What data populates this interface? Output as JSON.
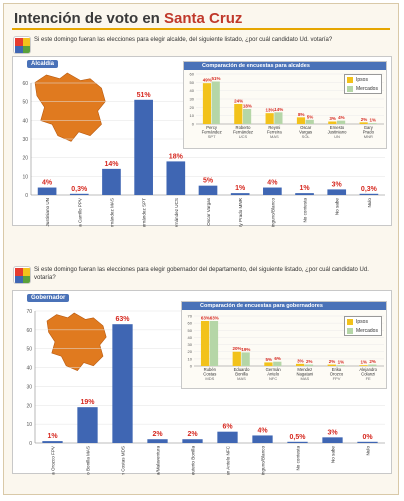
{
  "header": {
    "title_prefix": "Intención de voto en",
    "title_highlight": "Santa Cruz"
  },
  "colors": {
    "bar_blue": "#3f66b3",
    "map_orange": "#e07a1f",
    "pct_red": "#d6281f",
    "ipsos": "#f2c21b",
    "mercados": "#b5d6a7",
    "accent": "#e6a600",
    "section_blue": "#4a72b8"
  },
  "q1": {
    "question": "Si este domingo fueran las elecciones para elegir alcalde, del siguiente listado, ¿por cuál candidato Ud. votaría?",
    "section_label": "Alcaldía"
  },
  "q2": {
    "question": "Si este domingo fueran las elecciones para elegir gobernador del departamento, del siguiente listado, ¿por cuál candidato Ud. votaría?",
    "section_label": "Gobernador"
  },
  "chart_data": [
    {
      "type": "bar",
      "id": "alcaldia",
      "categories": [
        "Ernesto Justiniano",
        "Bella Carrillo",
        "Ricardo Fernández",
        "Percy Fernández",
        "Roberto Fernández",
        "Oscar Vargas",
        "Gary Prado",
        "Ninguno/Blanco",
        "No contesta",
        "No sabe",
        "Nulo"
      ],
      "parties": [
        "UN",
        "PPV",
        "MAS",
        "SPT",
        "UCS",
        "",
        "MNR",
        "",
        "",
        "",
        ""
      ],
      "values": [
        4,
        0.3,
        14,
        51,
        18,
        5,
        1,
        4,
        1,
        3,
        0.3
      ],
      "labels": [
        "4%",
        "0,3%",
        "14%",
        "51%",
        "18%",
        "5%",
        "1%",
        "4%",
        "1%",
        "3%",
        "0,3%"
      ],
      "yticks": [
        "0",
        "10",
        "20",
        "30",
        "40",
        "50",
        "60"
      ],
      "ylim": [
        0,
        60
      ]
    },
    {
      "type": "bar",
      "id": "gobernador",
      "categories": [
        "Erika Orozco",
        "Eduardo Bonilla",
        "Rubén Costas",
        "Ma. Elena Peña/Malaventura",
        "Eleuterio Bonilla",
        "German Antelo",
        "Ninguno/Blanco",
        "No contesta",
        "No sabe",
        "Nulo"
      ],
      "parties": [
        "FPV",
        "MAS",
        "MDS",
        "",
        "",
        "NFC",
        "",
        "",
        "",
        ""
      ],
      "values": [
        1,
        19,
        63,
        2,
        2,
        6,
        4,
        0.5,
        3,
        0
      ],
      "labels": [
        "1%",
        "19%",
        "63%",
        "2%",
        "2%",
        "6%",
        "4%",
        "0,5%",
        "3%",
        "0%"
      ],
      "yticks": [
        "0",
        "10",
        "20",
        "30",
        "40",
        "50",
        "60",
        "70"
      ],
      "ylim": [
        0,
        70
      ]
    },
    {
      "type": "bar",
      "id": "comparacion_alcaldes",
      "title": "Comparación de encuestas para alcaldes",
      "categories": [
        "Percy Fernández",
        "Roberto Fernández",
        "Reymi Ferreira",
        "Oscar Vargas",
        "Ernesto Justiniano",
        "Gary Prado"
      ],
      "parties": [
        "SPT",
        "UCS",
        "MAS",
        "SOL",
        "UN",
        "MNR"
      ],
      "series": [
        {
          "name": "Ipsos",
          "values": [
            49,
            24,
            13,
            8,
            3,
            2
          ],
          "labels": [
            "49%",
            "24%",
            "13%",
            "8%",
            "3%",
            "2%"
          ]
        },
        {
          "name": "Mercados",
          "values": [
            51,
            18,
            14,
            5,
            4,
            1
          ],
          "labels": [
            "51%",
            "18%",
            "14%",
            "5%",
            "4%",
            "1%"
          ]
        }
      ],
      "yticks": [
        "0",
        "10",
        "20",
        "30",
        "40",
        "50",
        "60"
      ],
      "ylim": [
        0,
        60
      ]
    },
    {
      "type": "bar",
      "id": "comparacion_gobernadores",
      "title": "Comparación de encuestas para gobernadores",
      "categories": [
        "Rubén Costas",
        "Eduardo Bonilla",
        "Germán Antelo",
        "Mendez Nagatani",
        "Erika Orozco",
        "Alejandro Colanzi"
      ],
      "parties": [
        "MDS",
        "MAS",
        "NFC",
        "MAS",
        "FPV",
        "FE"
      ],
      "series": [
        {
          "name": "Ipsos",
          "values": [
            63,
            20,
            5,
            3,
            2,
            1
          ],
          "labels": [
            "63%",
            "20%",
            "5%",
            "3%",
            "2%",
            "1%"
          ]
        },
        {
          "name": "Mercados",
          "values": [
            63,
            19,
            6,
            2,
            1,
            2
          ],
          "labels": [
            "63%",
            "19%",
            "6%",
            "2%",
            "1%",
            "2%"
          ]
        }
      ],
      "yticks": [
        "0",
        "10",
        "20",
        "30",
        "40",
        "50",
        "60",
        "70"
      ],
      "ylim": [
        0,
        70
      ]
    }
  ]
}
